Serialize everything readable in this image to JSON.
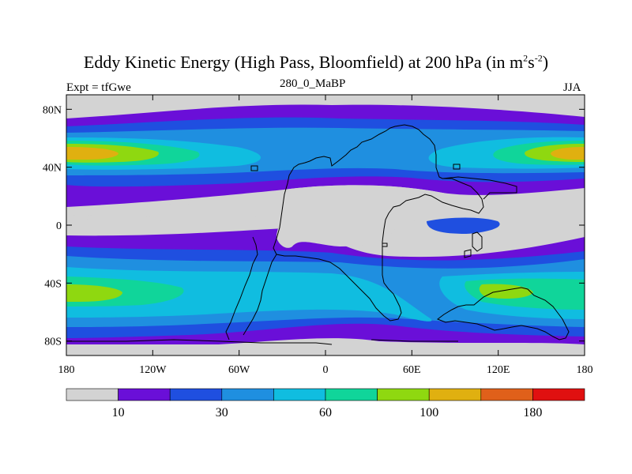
{
  "title": {
    "prefix": "Eddy Kinetic Energy (High Pass, Bloomfield) at 200 hPa (in m",
    "exp1": "2",
    "mid": "s",
    "exp2": "-2",
    "suffix": ")"
  },
  "subtitle": "280_0_MaBP",
  "left_label": "Expt = tfGwe",
  "right_label": "JJA",
  "lat_ticks": [
    "80N",
    "40N",
    "0",
    "40S",
    "80S"
  ],
  "lon_ticks": [
    "180",
    "120W",
    "60W",
    "0",
    "60E",
    "120E",
    "180"
  ],
  "colorbar": {
    "colors": [
      "#d3d3d3",
      "#6a0fd8",
      "#1f4fe0",
      "#1f8fe0",
      "#10bde0",
      "#10d59a",
      "#8fd810",
      "#e0b010",
      "#e0601a",
      "#e01010"
    ],
    "labels": [
      "10",
      "30",
      "60",
      "100",
      "180"
    ]
  }
}
